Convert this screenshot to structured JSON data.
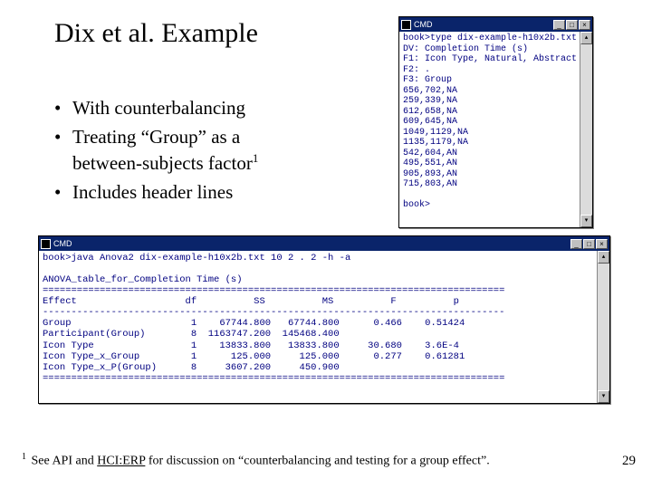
{
  "title": "Dix et al. Example",
  "bullets": {
    "b1": "With counterbalancing",
    "b2a": "Treating “Group” as a",
    "b2b": "between-subjects factor",
    "b2sup": "1",
    "b3": "Includes header lines"
  },
  "win1": {
    "title": "CMD",
    "min": "_",
    "max": "□",
    "close": "×",
    "body": "book>type dix-example-h10x2b.txt\nDV: Completion Time (s)\nF1: Icon Type, Natural, Abstract\nF2: .\nF3: Group\n656,702,NA\n259,339,NA\n612,658,NA\n609,645,NA\n1049,1129,NA\n1135,1179,NA\n542,604,AN\n495,551,AN\n905,893,AN\n715,803,AN\n\nbook>"
  },
  "win2": {
    "title": "CMD",
    "min": "_",
    "max": "□",
    "close": "×",
    "body": "book>java Anova2 dix-example-h10x2b.txt 10 2 . 2 -h -a\n\nANOVA_table_for_Completion Time (s)\n=================================================================================\nEffect                   df          SS          MS          F          p\n---------------------------------------------------------------------------------\nGroup                     1    67744.800   67744.800      0.466    0.51424\nParticipant(Group)        8  1163747.200  145468.400\nIcon Type                 1    13833.800   13833.800     30.680    3.6E-4\nIcon Type_x_Group         1      125.000     125.000      0.277    0.61281\nIcon Type_x_P(Group)      8     3607.200     450.900\n=================================================================================\n\nbook>"
  },
  "footnote": {
    "num": "1",
    "pre": " See API and ",
    "link": "HCI:ERP",
    "post": " for discussion on “counterbalancing and testing for a group effect”."
  },
  "pagenum": "29",
  "colors": {
    "titlebar": "#0a246a",
    "termtext": "#000080"
  }
}
